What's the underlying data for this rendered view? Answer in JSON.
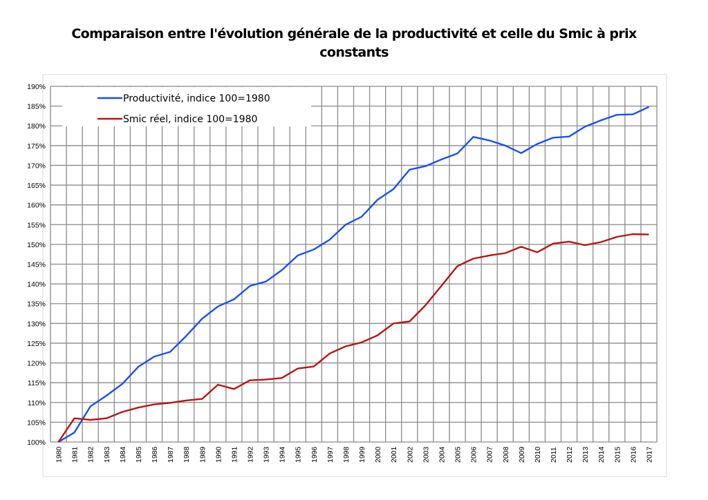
{
  "chart_data": {
    "type": "line",
    "title": "Comparaison entre l'évolution générale de la productivité et celle du Smic à prix constants",
    "xlabel": "",
    "ylabel": "",
    "x": [
      1980,
      1981,
      1982,
      1983,
      1984,
      1985,
      1986,
      1987,
      1988,
      1989,
      1990,
      1991,
      1992,
      1993,
      1994,
      1995,
      1996,
      1997,
      1998,
      1999,
      2000,
      2001,
      2002,
      2003,
      2004,
      2005,
      2006,
      2007,
      2008,
      2009,
      2010,
      2011,
      2012,
      2013,
      2014,
      2015,
      2016,
      2017
    ],
    "ylim": [
      100,
      190
    ],
    "ytick_step": 5,
    "ytick_format": "%",
    "grid": true,
    "legend_position": "top-left",
    "series": [
      {
        "name": "Productivité, indice 100=1980",
        "color": "#1a4ff0",
        "values": [
          100,
          102.4,
          109,
          111.7,
          114.7,
          119,
          121.6,
          122.8,
          126.8,
          131.2,
          134.3,
          136.1,
          139.5,
          140.6,
          143.5,
          147.2,
          148.7,
          151.2,
          155,
          157,
          161.3,
          164,
          168.9,
          169.8,
          171.5,
          173,
          177.2,
          176.3,
          175,
          173.1,
          175.4,
          177,
          177.3,
          179.8,
          181.4,
          182.8,
          182.9,
          184.8
        ]
      },
      {
        "name": "Smic réel, indice 100=1980",
        "color": "#b81414",
        "values": [
          100,
          106,
          105.6,
          106,
          107.6,
          108.7,
          109.5,
          109.9,
          110.5,
          110.9,
          114.5,
          113.4,
          115.6,
          115.8,
          116.2,
          118.6,
          119.1,
          122.4,
          124.2,
          125.2,
          127,
          130,
          130.5,
          134.6,
          139.5,
          144.5,
          146.4,
          147.2,
          147.8,
          149.4,
          148,
          150.2,
          150.7,
          149.8,
          150.6,
          151.9,
          152.6,
          152.5
        ]
      }
    ]
  }
}
